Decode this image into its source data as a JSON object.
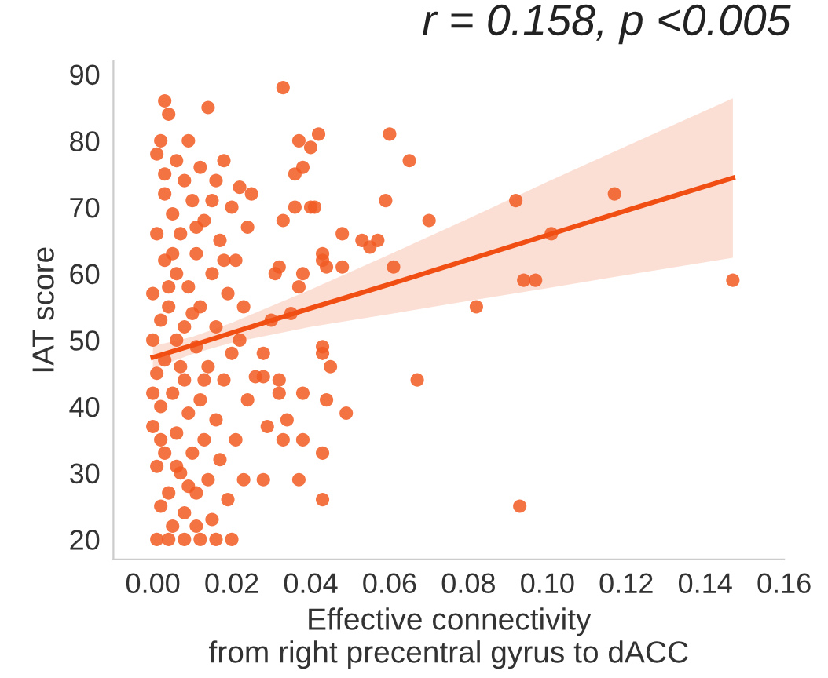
{
  "chart_data": {
    "type": "scatter",
    "title": "r = 0.158, p <0.005",
    "xlabel": "Effective connectivity\nfrom right precentral gyrus to dACC",
    "ylabel": "IAT score",
    "xlim": [
      -0.01,
      0.16
    ],
    "ylim": [
      17,
      92
    ],
    "xticks": [
      {
        "value": 0,
        "label": "0.00"
      },
      0.02,
      0.04,
      0.06,
      0.08,
      {
        "value": 0.1,
        "label": "0.10"
      },
      0.12,
      0.14,
      0.16
    ],
    "yticks": [
      20,
      30,
      40,
      50,
      60,
      70,
      80,
      90
    ],
    "grid": false,
    "legend": false,
    "series": [
      {
        "color": "#f15a22",
        "marker": "circle",
        "x": [
          0.033,
          0.037,
          0.04,
          0.042,
          0.06,
          0.065,
          0.036,
          0.038,
          0.036,
          0.04,
          0.041,
          0.033,
          0.059,
          0.07,
          0.048,
          0.053,
          0.055,
          0.057,
          0.043,
          0.043,
          0.044,
          0.048,
          0.061,
          0.032,
          0.031,
          0.038,
          0.037,
          0.092,
          0.094,
          0.097,
          0.082,
          0.035,
          0.03,
          0.101,
          0.043,
          0.043,
          0.045,
          0.028,
          0.028,
          0.026,
          0.032,
          0.032,
          0.038,
          0.044,
          0.067,
          0.049,
          0.034,
          0.029,
          0.033,
          0.038,
          0.043,
          0.028,
          0.037,
          0.043,
          0.093,
          0.117,
          0.147,
          0.003,
          0.004,
          0.002,
          0.014,
          0.001,
          0.006,
          0.012,
          0.018,
          0.022,
          0.025,
          0.016,
          0.008,
          0.003,
          0.01,
          0.02,
          0.005,
          0.013,
          0.024,
          0.001,
          0.007,
          0.017,
          0.011,
          0.003,
          0.021,
          0.006,
          0.015,
          0.009,
          0.0,
          0.019,
          0.004,
          0.012,
          0.023,
          0.002,
          0.008,
          0.016,
          0.0,
          0.006,
          0.011,
          0.02,
          0.003,
          0.014,
          0.001,
          0.008,
          0.018,
          0.005,
          0.012,
          0.024,
          0.002,
          0.009,
          0.016,
          0.0,
          0.006,
          0.013,
          0.021,
          0.003,
          0.01,
          0.017,
          0.001,
          0.007,
          0.014,
          0.023,
          0.004,
          0.011,
          0.019,
          0.002,
          0.008,
          0.015,
          0.005,
          0.011,
          0.001,
          0.004,
          0.008,
          0.012,
          0.016,
          0.02,
          0.003,
          0.009,
          0.005,
          0.007,
          0.002,
          0.01,
          0.013,
          0.004,
          0.006,
          0.018,
          0.022,
          0.015,
          0.011,
          0.0,
          0.009
        ],
        "values": [
          88,
          80,
          79,
          81,
          81,
          77,
          75,
          76,
          70,
          70,
          70,
          68,
          71,
          68,
          66,
          65,
          64,
          65,
          63,
          62,
          61,
          61,
          61,
          61,
          60,
          60,
          58,
          71,
          59,
          59,
          55,
          54,
          53,
          66,
          49,
          48,
          46,
          48,
          44.5,
          44.5,
          44,
          42,
          42,
          41,
          44,
          39,
          38,
          37,
          35,
          35,
          33,
          29,
          29,
          26,
          25,
          72,
          59,
          86,
          84,
          80,
          85,
          78,
          77,
          76,
          77,
          73,
          72,
          74,
          74,
          72,
          71,
          70,
          69,
          68,
          67,
          66,
          66,
          65,
          63,
          62,
          62,
          60,
          60,
          58,
          57,
          57,
          55,
          55,
          55,
          53,
          52,
          52,
          50,
          50,
          49,
          48,
          47,
          46,
          45,
          44,
          44,
          42,
          41,
          41,
          40,
          39,
          38,
          37,
          36,
          35,
          35,
          33,
          33,
          32,
          31,
          30,
          29,
          29,
          27,
          27,
          26,
          25,
          24,
          23,
          22,
          22,
          20,
          20,
          20,
          20,
          20,
          20,
          75,
          80,
          63,
          46,
          35,
          54,
          44,
          58,
          31,
          62,
          50,
          71,
          67,
          42,
          28
        ]
      },
      {
        "type": "line",
        "color": "#f04e13",
        "marker": "none",
        "line_style": "solid",
        "x": [
          0,
          0.01,
          0.02,
          0.04,
          0.06,
          0.08,
          0.1,
          0.12,
          0.147
        ],
        "values": [
          47.4,
          49.2,
          51.1,
          54.8,
          58.4,
          62.1,
          65.8,
          69.5,
          74.4
        ],
        "lower": [
          45.7,
          47.9,
          49.6,
          52.0,
          53.9,
          55.9,
          57.8,
          59.8,
          62.4
        ],
        "upper": [
          49.1,
          50.5,
          52.6,
          57.6,
          62.9,
          68.3,
          73.8,
          79.2,
          86.4
        ]
      }
    ]
  }
}
